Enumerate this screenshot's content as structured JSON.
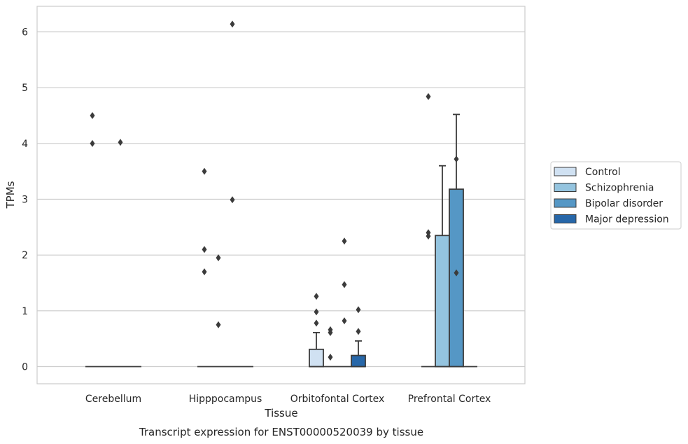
{
  "chart_data": {
    "type": "box",
    "caption": "Transcript expression for ENST00000520039 by tissue",
    "xlabel": "Tissue",
    "ylabel": "TPMs",
    "ylim": [
      -0.3,
      6.45
    ],
    "yticks": [
      0,
      1,
      2,
      3,
      4,
      5,
      6
    ],
    "grid": "horizontal",
    "legend_position": "right",
    "categories": [
      "Cerebellum",
      "Hipppocampus",
      "Orbitofontal Cortex",
      "Prefrontal Cortex"
    ],
    "series": [
      {
        "name": "Control",
        "color": "#d0e1f2",
        "boxes": [
          {
            "q1": 0,
            "median": 0,
            "q3": 0,
            "whisker_low": 0,
            "whisker_high": 0,
            "outliers": [
              4.5,
              4.0
            ]
          },
          {
            "q1": 0,
            "median": 0,
            "q3": 0,
            "whisker_low": 0,
            "whisker_high": 0,
            "outliers": [
              3.5,
              2.1,
              1.7
            ]
          },
          {
            "q1": 0,
            "median": 0,
            "q3": 0.31,
            "whisker_low": 0,
            "whisker_high": 0.61,
            "outliers": [
              1.26,
              0.98,
              0.78
            ]
          },
          {
            "q1": 0,
            "median": 0,
            "q3": 0,
            "whisker_low": 0,
            "whisker_high": 0,
            "outliers": [
              4.84,
              2.4,
              2.34
            ]
          }
        ]
      },
      {
        "name": "Schizophrenia",
        "color": "#94c4df",
        "boxes": [
          {
            "q1": 0,
            "median": 0,
            "q3": 0,
            "whisker_low": 0,
            "whisker_high": 0,
            "outliers": []
          },
          {
            "q1": 0,
            "median": 0,
            "q3": 0,
            "whisker_low": 0,
            "whisker_high": 0,
            "outliers": [
              1.95,
              0.75
            ]
          },
          {
            "q1": 0,
            "median": 0,
            "q3": 0,
            "whisker_low": 0,
            "whisker_high": 0,
            "outliers": [
              0.66,
              0.61,
              0.17
            ]
          },
          {
            "q1": 0,
            "median": 0,
            "q3": 2.35,
            "whisker_low": 0,
            "whisker_high": 3.6,
            "outliers": []
          }
        ]
      },
      {
        "name": "Bipolar disorder",
        "color": "#5597c5",
        "boxes": [
          {
            "q1": 0,
            "median": 0,
            "q3": 0,
            "whisker_low": 0,
            "whisker_high": 0,
            "outliers": [
              4.02
            ]
          },
          {
            "q1": 0,
            "median": 0,
            "q3": 0,
            "whisker_low": 0,
            "whisker_high": 0,
            "outliers": [
              6.14,
              2.99
            ]
          },
          {
            "q1": 0,
            "median": 0,
            "q3": 0,
            "whisker_low": 0,
            "whisker_high": 0,
            "outliers": [
              2.25,
              1.47,
              0.82
            ]
          },
          {
            "q1": 0,
            "median": 0,
            "q3": 3.18,
            "whisker_low": 0,
            "whisker_high": 4.52,
            "outliers": [
              3.72,
              1.68
            ]
          }
        ]
      },
      {
        "name": "Major depression",
        "color": "#2767a9",
        "boxes": [
          {
            "q1": 0,
            "median": 0,
            "q3": 0,
            "whisker_low": 0,
            "whisker_high": 0,
            "outliers": []
          },
          {
            "q1": 0,
            "median": 0,
            "q3": 0,
            "whisker_low": 0,
            "whisker_high": 0,
            "outliers": []
          },
          {
            "q1": 0,
            "median": 0,
            "q3": 0.2,
            "whisker_low": 0,
            "whisker_high": 0.46,
            "outliers": [
              1.02,
              0.63
            ]
          },
          {
            "q1": 0,
            "median": 0,
            "q3": 0,
            "whisker_low": 0,
            "whisker_high": 0,
            "outliers": []
          }
        ]
      }
    ]
  }
}
